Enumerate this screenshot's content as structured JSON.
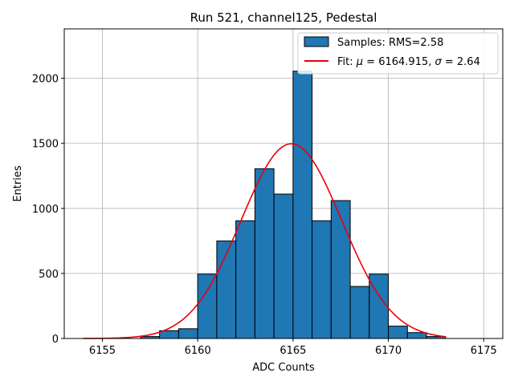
{
  "chart_data": {
    "type": "bar",
    "title": "Run 521, channel125, Pedestal",
    "xlabel": "ADC Counts",
    "ylabel": "Entries",
    "xlim": [
      6153.0,
      6176.0
    ],
    "ylim": [
      0,
      2380
    ],
    "xticks": [
      6155,
      6160,
      6165,
      6170,
      6175
    ],
    "yticks": [
      0,
      500,
      1000,
      1500,
      2000
    ],
    "grid": true,
    "legend_position": "top-right",
    "histogram": {
      "name": "Samples: RMS=2.58",
      "color": "#1f77b4",
      "edge_color": "#000000",
      "bin_edges": [
        6157,
        6158,
        6159,
        6160,
        6161,
        6162,
        6163,
        6164,
        6165,
        6166,
        6167,
        6168,
        6169,
        6170,
        6171,
        6172,
        6173
      ],
      "values": [
        15,
        60,
        75,
        495,
        750,
        905,
        1305,
        1110,
        2055,
        905,
        1060,
        400,
        495,
        95,
        45,
        15
      ]
    },
    "fit": {
      "name": "Fit: μ = 6164.915, σ = 2.64",
      "color": "#e8000b",
      "function": "gaussian",
      "mu": 6164.915,
      "sigma": 2.64,
      "amplitude": 1497,
      "x_range": [
        6154,
        6173
      ]
    }
  }
}
